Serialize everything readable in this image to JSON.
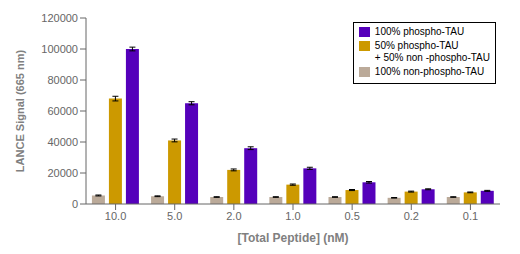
{
  "chart_data": {
    "type": "bar",
    "categories": [
      "10.0",
      "5.0",
      "2.0",
      "1.0",
      "0.5",
      "0.2",
      "0.1"
    ],
    "series": [
      {
        "name": "100% non-phospho-TAU",
        "color": "#BBAA99",
        "values": [
          5500,
          5000,
          4500,
          4500,
          4500,
          4000,
          4500
        ],
        "errors": [
          300,
          250,
          200,
          200,
          200,
          180,
          180
        ]
      },
      {
        "name": "50% phospho-TAU\n+ 50% non -phospho-TAU",
        "color": "#CC9900",
        "values": [
          68000,
          41000,
          22000,
          12500,
          9000,
          8000,
          7500
        ],
        "errors": [
          1500,
          900,
          600,
          400,
          350,
          300,
          250
        ]
      },
      {
        "name": "100% phospho-TAU",
        "color": "#5500BB",
        "values": [
          100000,
          65000,
          36000,
          23000,
          14000,
          9500,
          8500
        ],
        "errors": [
          1200,
          1000,
          900,
          700,
          500,
          300,
          300
        ]
      }
    ],
    "xlabel": "[Total Peptide] (nM)",
    "ylabel": "LANCE Signal (665 nm)",
    "ylim": [
      0,
      120000
    ],
    "yticks": [
      0,
      20000,
      40000,
      60000,
      80000,
      100000,
      120000
    ],
    "grid": false,
    "legend": "upper right"
  }
}
